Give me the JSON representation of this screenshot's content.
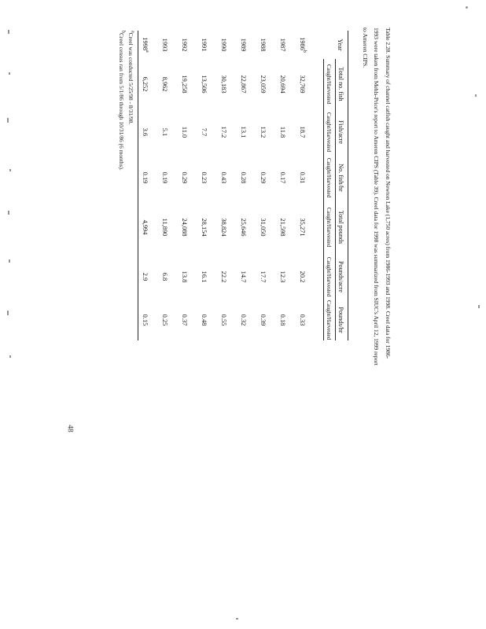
{
  "page": {
    "number": "48"
  },
  "title": {
    "text": "Table 2.28.  Summary of channel catfish caught and harvested on Newton Lake (1,750 acres) from 1986-1993 and 1998.  Creel data for 1986-1993 were taken from Mehls-Price's report to Ameren CIPS (Table 39).  Creel data for 1998 was summarized from SIUC's April 12, 1999 report to Ameren CIPS."
  },
  "table": {
    "col_groups": [
      "Year",
      "Total no. fish",
      "Fish/acre",
      "No. fish/hr",
      "Total pounds",
      "Pounds/acre",
      "Pounds/hr"
    ],
    "sub_label": "Caught/Harvested",
    "rows": [
      {
        "year": "1986",
        "marker": "b",
        "values": [
          "32,769",
          "18.7",
          "0.31",
          "35,271",
          "20.2",
          "0.33"
        ]
      },
      {
        "year": "1987",
        "marker": "",
        "values": [
          "20,694",
          "11.8",
          "0.17",
          "21,598",
          "12.3",
          "0.18"
        ]
      },
      {
        "year": "1988",
        "marker": "",
        "values": [
          "23,059",
          "13.2",
          "0.29",
          "31,050",
          "17.7",
          "0.39"
        ]
      },
      {
        "year": "1989",
        "marker": "",
        "values": [
          "22,867",
          "13.1",
          "0.28",
          "25,646",
          "14.7",
          "0.32"
        ]
      },
      {
        "year": "1990",
        "marker": "",
        "values": [
          "30,183",
          "17.2",
          "0.43",
          "38,824",
          "22.2",
          "0.55"
        ]
      },
      {
        "year": "1991",
        "marker": "",
        "values": [
          "13,506",
          "7.7",
          "0.23",
          "28,154",
          "16.1",
          "0.48"
        ]
      },
      {
        "year": "1992",
        "marker": "",
        "values": [
          "19,258",
          "11.0",
          "0.29",
          "24,088",
          "13.8",
          "0.37"
        ]
      },
      {
        "year": "1993",
        "marker": "",
        "values": [
          "8,962",
          "5.1",
          "0.19",
          "11,890",
          "6.8",
          "0.25"
        ]
      },
      {
        "year": "1998",
        "marker": "a",
        "values": [
          "6,252",
          "3.6",
          "0.19",
          "4,994",
          "2.9",
          "0.15"
        ]
      }
    ],
    "footnotes": [
      {
        "marker": "a",
        "text": "Creel was conducted 5/25/98 - 8/31/98."
      },
      {
        "marker": "b",
        "text": "Creel census ran from 5/1/86 through 10/31/86 (6 months)."
      }
    ]
  },
  "chart_data": {
    "type": "table",
    "title": "Channel catfish caught and harvested on Newton Lake, 1986-1993 and 1998",
    "columns": [
      "Year",
      "Total no. fish",
      "Fish/acre",
      "No. fish/hr",
      "Total pounds",
      "Pounds/acre",
      "Pounds/hr"
    ],
    "rows": [
      [
        "1986",
        32769,
        18.7,
        0.31,
        35271,
        20.2,
        0.33
      ],
      [
        "1987",
        20694,
        11.8,
        0.17,
        21598,
        12.3,
        0.18
      ],
      [
        "1988",
        23059,
        13.2,
        0.29,
        31050,
        17.7,
        0.39
      ],
      [
        "1989",
        22867,
        13.1,
        0.28,
        25646,
        14.7,
        0.32
      ],
      [
        "1990",
        30183,
        17.2,
        0.43,
        38824,
        22.2,
        0.55
      ],
      [
        "1991",
        13506,
        7.7,
        0.23,
        28154,
        16.1,
        0.48
      ],
      [
        "1992",
        19258,
        11.0,
        0.29,
        24088,
        13.8,
        0.37
      ],
      [
        "1993",
        8962,
        5.1,
        0.19,
        11890,
        6.8,
        0.25
      ],
      [
        "1998",
        6252,
        3.6,
        0.19,
        4994,
        2.9,
        0.15
      ]
    ]
  }
}
